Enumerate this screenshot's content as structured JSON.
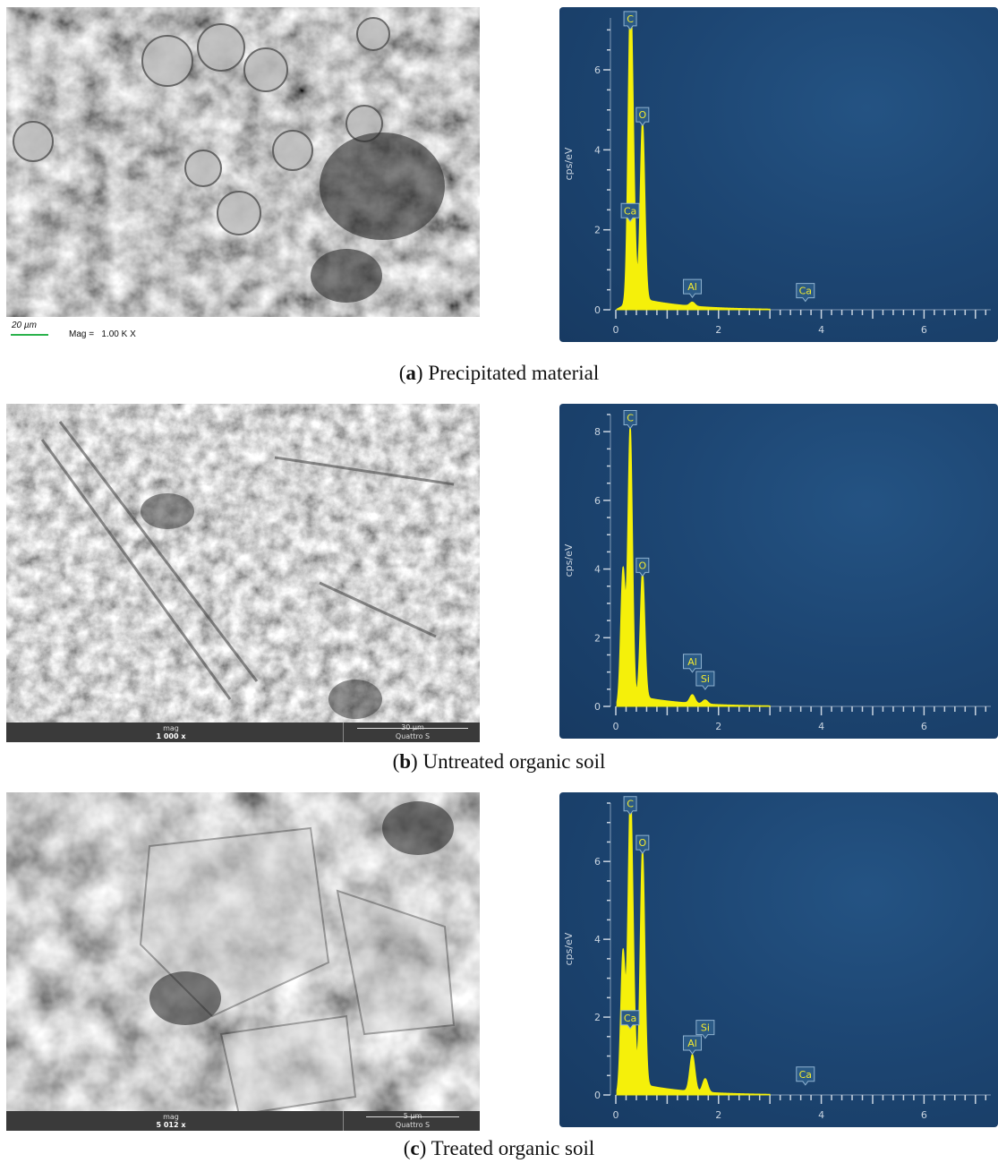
{
  "panels": [
    {
      "id": "a",
      "caption_letter": "a",
      "caption_text": "Precipitated material",
      "sem": {
        "style": "white-bar",
        "scale_text": "20 µm",
        "mag_text": "Mag =   1.00 K X"
      },
      "chart_data": {
        "type": "line",
        "ylabel": "cps/eV",
        "xlim": [
          0,
          7.3
        ],
        "ylim": [
          0,
          7.3
        ],
        "x_ticks": [
          "0",
          "2",
          "4",
          "6"
        ],
        "y_ticks": [
          "0",
          "2",
          "4",
          "6"
        ],
        "y_tick_values": [
          0,
          2,
          4,
          6
        ],
        "peaks": [
          {
            "element": "C",
            "energy": 0.28,
            "height": 6.9
          },
          {
            "element": "Ca",
            "energy": 0.34,
            "height": 2.1
          },
          {
            "element": "O",
            "energy": 0.52,
            "height": 4.5
          },
          {
            "element": "Al",
            "energy": 1.49,
            "height": 0.1
          },
          {
            "element": "Ca",
            "energy": 3.69,
            "height": 0.0
          }
        ],
        "labels": [
          {
            "text": "C",
            "energy": 0.28,
            "level": 7.1
          },
          {
            "text": "O",
            "energy": 0.52,
            "level": 4.7
          },
          {
            "text": "Ca",
            "energy": 0.28,
            "level": 2.3
          },
          {
            "text": "Al",
            "energy": 1.49,
            "level": 0.4
          },
          {
            "text": "Ca",
            "energy": 3.69,
            "level": 0.3
          }
        ]
      }
    },
    {
      "id": "b",
      "caption_letter": "b",
      "caption_text": "Untreated organic soil",
      "sem": {
        "style": "dark-bar",
        "mag_label": "mag",
        "mag_value": "1 000 x",
        "scale_text": "30 µm",
        "instrument": "Quattro S"
      },
      "chart_data": {
        "type": "line",
        "ylabel": "cps/eV",
        "xlim": [
          0,
          7.3
        ],
        "ylim": [
          0,
          8.5
        ],
        "x_ticks": [
          "0",
          "2",
          "4",
          "6"
        ],
        "y_ticks": [
          "0",
          "2",
          "4",
          "6",
          "8"
        ],
        "y_tick_values": [
          0,
          2,
          4,
          6,
          8
        ],
        "peaks": [
          {
            "element": "C",
            "energy": 0.28,
            "height": 8.0
          },
          {
            "element": "C2",
            "energy": 0.14,
            "height": 3.9
          },
          {
            "element": "O",
            "energy": 0.52,
            "height": 3.7
          },
          {
            "element": "Al",
            "energy": 1.49,
            "height": 0.25
          },
          {
            "element": "Si",
            "energy": 1.74,
            "height": 0.12
          }
        ],
        "labels": [
          {
            "text": "C",
            "energy": 0.28,
            "level": 8.2
          },
          {
            "text": "O",
            "energy": 0.52,
            "level": 3.9
          },
          {
            "text": "Al",
            "energy": 1.49,
            "level": 1.1
          },
          {
            "text": "Si",
            "energy": 1.74,
            "level": 0.6
          }
        ]
      }
    },
    {
      "id": "c",
      "caption_letter": "c",
      "caption_text": "Treated organic soil",
      "sem": {
        "style": "dark-bar",
        "mag_label": "mag",
        "mag_value": "5 012 x",
        "scale_text": "5 µm",
        "instrument": "Quattro S"
      },
      "chart_data": {
        "type": "line",
        "ylabel": "cps/eV",
        "xlim": [
          0,
          7.3
        ],
        "ylim": [
          0,
          7.5
        ],
        "x_ticks": [
          "0",
          "2",
          "4",
          "6"
        ],
        "y_ticks": [
          "0",
          "2",
          "4",
          "6"
        ],
        "y_tick_values": [
          0,
          2,
          4,
          6
        ],
        "peaks": [
          {
            "element": "C",
            "energy": 0.28,
            "height": 7.0
          },
          {
            "element": "C2",
            "energy": 0.14,
            "height": 3.6
          },
          {
            "element": "Ca",
            "energy": 0.34,
            "height": 1.6
          },
          {
            "element": "O",
            "energy": 0.52,
            "height": 6.1
          },
          {
            "element": "Al",
            "energy": 1.49,
            "height": 0.95
          },
          {
            "element": "Si",
            "energy": 1.74,
            "height": 0.35
          },
          {
            "element": "Ca",
            "energy": 3.69,
            "height": 0.0
          }
        ],
        "labels": [
          {
            "text": "C",
            "energy": 0.28,
            "level": 7.3
          },
          {
            "text": "O",
            "energy": 0.52,
            "level": 6.3
          },
          {
            "text": "Ca",
            "energy": 0.28,
            "level": 1.8
          },
          {
            "text": "Si",
            "energy": 1.74,
            "level": 1.55
          },
          {
            "text": "Al",
            "energy": 1.49,
            "level": 1.15
          },
          {
            "text": "Ca",
            "energy": 3.69,
            "level": 0.35
          }
        ]
      }
    }
  ]
}
